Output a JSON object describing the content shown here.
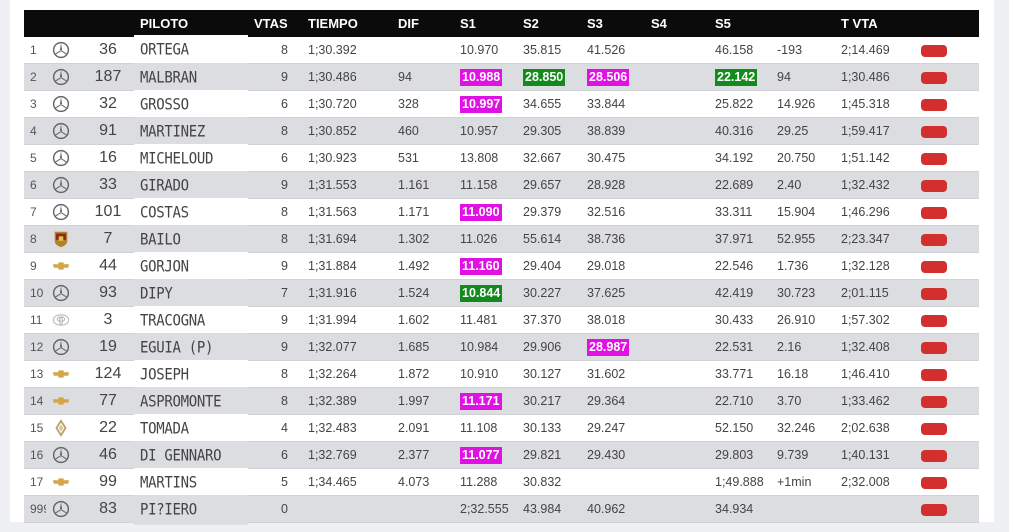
{
  "columns": [
    "",
    "",
    "",
    "PILOTO",
    "VTAS",
    "TIEMPO",
    "DIF",
    "S1",
    "S2",
    "S3",
    "S4",
    "S5",
    "",
    "T VTA",
    ""
  ],
  "rows": [
    {
      "pos": "1",
      "brand": "mercedes",
      "num": "36",
      "name": "ORTEGA",
      "vtas": "8",
      "tiempo": "1;30.392",
      "dif": "",
      "s1": "10.970",
      "s1hl": "",
      "s2": "35.815",
      "s2hl": "",
      "s3": "41.526",
      "s3hl": "",
      "s4": "",
      "s5": "46.158",
      "s5hl": "",
      "x": "-193",
      "tvta": "2;14.469"
    },
    {
      "pos": "2",
      "brand": "mercedes",
      "num": "187",
      "name": "MALBRAN",
      "vtas": "9",
      "tiempo": "1;30.486",
      "dif": "94",
      "s1": "10.988",
      "s1hl": "magenta",
      "s2": "28.850",
      "s2hl": "green",
      "s3": "28.506",
      "s3hl": "magenta",
      "s4": "",
      "s5": "22.142",
      "s5hl": "green",
      "x": "94",
      "tvta": "1;30.486"
    },
    {
      "pos": "3",
      "brand": "mercedes",
      "num": "32",
      "name": "GROSSO",
      "vtas": "6",
      "tiempo": "1;30.720",
      "dif": "328",
      "s1": "10.997",
      "s1hl": "magenta",
      "s2": "34.655",
      "s2hl": "",
      "s3": "33.844",
      "s3hl": "",
      "s4": "",
      "s5": "25.822",
      "s5hl": "",
      "x": "14.926",
      "tvta": "1;45.318"
    },
    {
      "pos": "4",
      "brand": "mercedes",
      "num": "91",
      "name": "MARTINEZ",
      "vtas": "8",
      "tiempo": "1;30.852",
      "dif": "460",
      "s1": "10.957",
      "s1hl": "",
      "s2": "29.305",
      "s2hl": "",
      "s3": "38.839",
      "s3hl": "",
      "s4": "",
      "s5": "40.316",
      "s5hl": "",
      "x": "29.25",
      "tvta": "1;59.417"
    },
    {
      "pos": "5",
      "brand": "mercedes",
      "num": "16",
      "name": "MICHELOUD",
      "vtas": "6",
      "tiempo": "1;30.923",
      "dif": "531",
      "s1": "13.808",
      "s1hl": "",
      "s2": "32.667",
      "s2hl": "",
      "s3": "30.475",
      "s3hl": "",
      "s4": "",
      "s5": "34.192",
      "s5hl": "",
      "x": "20.750",
      "tvta": "1;51.142"
    },
    {
      "pos": "6",
      "brand": "mercedes",
      "num": "33",
      "name": "GIRADO",
      "vtas": "9",
      "tiempo": "1;31.553",
      "dif": "1.161",
      "s1": "11.158",
      "s1hl": "",
      "s2": "29.657",
      "s2hl": "",
      "s3": "28.928",
      "s3hl": "",
      "s4": "",
      "s5": "22.689",
      "s5hl": "",
      "x": "2.40",
      "tvta": "1;32.432"
    },
    {
      "pos": "7",
      "brand": "mercedes",
      "num": "101",
      "name": "COSTAS",
      "vtas": "8",
      "tiempo": "1;31.563",
      "dif": "1.171",
      "s1": "11.090",
      "s1hl": "magenta",
      "s2": "29.379",
      "s2hl": "",
      "s3": "32.516",
      "s3hl": "",
      "s4": "",
      "s5": "33.311",
      "s5hl": "",
      "x": "15.904",
      "tvta": "1;46.296"
    },
    {
      "pos": "8",
      "brand": "porsche",
      "num": "7",
      "name": "BAILO",
      "vtas": "8",
      "tiempo": "1;31.694",
      "dif": "1.302",
      "s1": "11.026",
      "s1hl": "",
      "s2": "55.614",
      "s2hl": "",
      "s3": "38.736",
      "s3hl": "",
      "s4": "",
      "s5": "37.971",
      "s5hl": "",
      "x": "52.955",
      "tvta": "2;23.347"
    },
    {
      "pos": "9",
      "brand": "chevrolet",
      "num": "44",
      "name": "GORJON",
      "vtas": "9",
      "tiempo": "1;31.884",
      "dif": "1.492",
      "s1": "11.160",
      "s1hl": "magenta",
      "s2": "29.404",
      "s2hl": "",
      "s3": "29.018",
      "s3hl": "",
      "s4": "",
      "s5": "22.546",
      "s5hl": "",
      "x": "1.736",
      "tvta": "1;32.128"
    },
    {
      "pos": "10",
      "brand": "mercedes",
      "num": "93",
      "name": "DIPY",
      "vtas": "7",
      "tiempo": "1;31.916",
      "dif": "1.524",
      "s1": "10.844",
      "s1hl": "green",
      "s2": "30.227",
      "s2hl": "",
      "s3": "37.625",
      "s3hl": "",
      "s4": "",
      "s5": "42.419",
      "s5hl": "",
      "x": "30.723",
      "tvta": "2;01.115"
    },
    {
      "pos": "11",
      "brand": "toyota",
      "num": "3",
      "name": "TRACOGNA",
      "vtas": "9",
      "tiempo": "1;31.994",
      "dif": "1.602",
      "s1": "11.481",
      "s1hl": "",
      "s2": "37.370",
      "s2hl": "",
      "s3": "38.018",
      "s3hl": "",
      "s4": "",
      "s5": "30.433",
      "s5hl": "",
      "x": "26.910",
      "tvta": "1;57.302"
    },
    {
      "pos": "12",
      "brand": "mercedes",
      "num": "19",
      "name": "EGUIA (P)",
      "vtas": "9",
      "tiempo": "1;32.077",
      "dif": "1.685",
      "s1": "10.984",
      "s1hl": "",
      "s2": "29.906",
      "s2hl": "",
      "s3": "28.987",
      "s3hl": "magenta",
      "s4": "",
      "s5": "22.531",
      "s5hl": "",
      "x": "2.16",
      "tvta": "1;32.408"
    },
    {
      "pos": "13",
      "brand": "chevrolet",
      "num": "124",
      "name": "JOSEPH",
      "vtas": "8",
      "tiempo": "1;32.264",
      "dif": "1.872",
      "s1": "10.910",
      "s1hl": "",
      "s2": "30.127",
      "s2hl": "",
      "s3": "31.602",
      "s3hl": "",
      "s4": "",
      "s5": "33.771",
      "s5hl": "",
      "x": "16.18",
      "tvta": "1;46.410"
    },
    {
      "pos": "14",
      "brand": "chevrolet",
      "num": "77",
      "name": "ASPROMONTE",
      "vtas": "8",
      "tiempo": "1;32.389",
      "dif": "1.997",
      "s1": "11.171",
      "s1hl": "magenta",
      "s2": "30.217",
      "s2hl": "",
      "s3": "29.364",
      "s3hl": "",
      "s4": "",
      "s5": "22.710",
      "s5hl": "",
      "x": "3.70",
      "tvta": "1;33.462"
    },
    {
      "pos": "15",
      "brand": "renault",
      "num": "22",
      "name": "TOMADA",
      "vtas": "4",
      "tiempo": "1;32.483",
      "dif": "2.091",
      "s1": "11.108",
      "s1hl": "",
      "s2": "30.133",
      "s2hl": "",
      "s3": "29.247",
      "s3hl": "",
      "s4": "",
      "s5": "52.150",
      "s5hl": "",
      "x": "32.246",
      "tvta": "2;02.638"
    },
    {
      "pos": "16",
      "brand": "mercedes",
      "num": "46",
      "name": "DI GENNARO",
      "vtas": "6",
      "tiempo": "1;32.769",
      "dif": "2.377",
      "s1": "11.077",
      "s1hl": "magenta",
      "s2": "29.821",
      "s2hl": "",
      "s3": "29.430",
      "s3hl": "",
      "s4": "",
      "s5": "29.803",
      "s5hl": "",
      "x": "9.739",
      "tvta": "1;40.131"
    },
    {
      "pos": "17",
      "brand": "chevrolet",
      "num": "99",
      "name": "MARTINS",
      "vtas": "5",
      "tiempo": "1;34.465",
      "dif": "4.073",
      "s1": "11.288",
      "s1hl": "",
      "s2": "30.832",
      "s2hl": "",
      "s3": "",
      "s3hl": "",
      "s4": "",
      "s5": "1;49.888",
      "s5hl": "",
      "x": "+1min",
      "tvta": "2;32.008"
    },
    {
      "pos": "999",
      "brand": "mercedes",
      "num": "83",
      "name": "PI?IERO",
      "vtas": "0",
      "tiempo": "",
      "dif": "",
      "s1": "2;32.555",
      "s1hl": "",
      "s2": "43.984",
      "s2hl": "",
      "s3": "40.962",
      "s3hl": "",
      "s4": "",
      "s5": "34.934",
      "s5hl": "",
      "x": "",
      "tvta": ""
    }
  ],
  "colors": {
    "header_bg": "#0b0b0c",
    "row_alt": "#dcdde0",
    "highlight_magenta": "#e012e3",
    "highlight_green": "#138a1c",
    "button_red": "#d32f2f"
  }
}
